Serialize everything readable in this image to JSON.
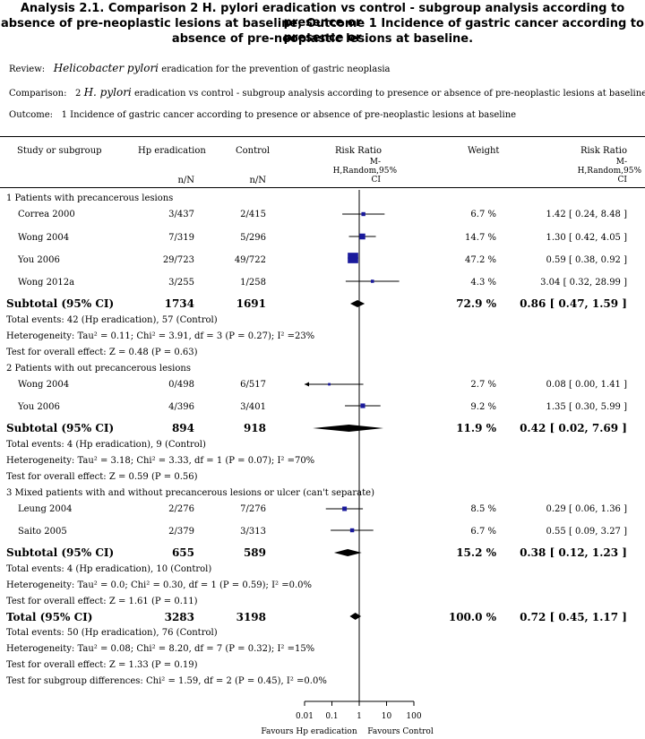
{
  "title": {
    "line1": "Analysis 2.1.   Comparison 2 H. pylori eradication vs control - subgroup analysis according to presence or",
    "line2": "absence of pre-neoplastic lesions at baseline, Outcome 1 Incidence of gastric cancer according to presence or",
    "line3": "absence of pre-neoplastic lesions at baseline."
  },
  "meta": {
    "review_label": "Review:",
    "review_italic": "Helicobacter pylori",
    "review_text": "eradication for the prevention of gastric neoplasia",
    "comparison_label": "Comparison:",
    "comparison_prefix": "2",
    "comparison_italic": "H. pylori",
    "comparison_text": "eradication vs control - subgroup analysis according to presence or absence of pre-neoplastic lesions at baseline",
    "outcome_label": "Outcome:",
    "outcome_text": "1 Incidence of gastric cancer according to presence or absence of pre-neoplastic lesions at baseline"
  },
  "columns": {
    "study": "Study or subgroup",
    "hp": "Hp eradication",
    "control": "Control",
    "rr_plot_1": "Risk Ratio",
    "rr_plot_2": "M-",
    "rr_plot_3": "H,Random,95%",
    "rr_plot_4": "CI",
    "weight": "Weight",
    "rr_1": "Risk Ratio",
    "rr_2": "M-",
    "rr_3": "H,Random,95%",
    "rr_4": "CI",
    "hp_sub": "n/N",
    "control_sub": "n/N"
  },
  "groups": [
    {
      "title": "1 Patients with precancerous lesions",
      "studies": [
        {
          "name": "Correa 2000",
          "hp": "3/437",
          "control": "2/415",
          "weight": "6.7 %",
          "ci_text": "1.42 [ 0.24, 8.48 ]"
        },
        {
          "name": "Wong 2004",
          "hp": "7/319",
          "control": "5/296",
          "weight": "14.7 %",
          "ci_text": "1.30 [ 0.42, 4.05 ]"
        },
        {
          "name": "You 2006",
          "hp": "29/723",
          "control": "49/722",
          "weight": "47.2 %",
          "ci_text": "0.59 [ 0.38, 0.92 ]"
        },
        {
          "name": "Wong 2012a",
          "hp": "3/255",
          "control": "1/258",
          "weight": "4.3 %",
          "ci_text": "3.04 [ 0.32, 28.99 ]"
        }
      ],
      "subtotal": {
        "label": "Subtotal (95% CI)",
        "hp": "1734",
        "control": "1691",
        "weight": "72.9 %",
        "ci_text": "0.86 [ 0.47, 1.59 ]"
      },
      "stats": [
        "Total events: 42 (Hp eradication), 57 (Control)",
        "Heterogeneity: Tau² = 0.11; Chi² = 3.91, df = 3 (P = 0.27); I² =23%",
        "Test for overall effect: Z = 0.48 (P = 0.63)"
      ]
    },
    {
      "title": "2 Patients with out precancerous lesions",
      "studies": [
        {
          "name": "Wong 2004",
          "hp": "0/498",
          "control": "6/517",
          "weight": "2.7 %",
          "ci_text": "0.08 [ 0.00, 1.41 ]"
        },
        {
          "name": "You 2006",
          "hp": "4/396",
          "control": "3/401",
          "weight": "9.2 %",
          "ci_text": "1.35 [ 0.30, 5.99 ]"
        }
      ],
      "subtotal": {
        "label": "Subtotal (95% CI)",
        "hp": "894",
        "control": "918",
        "weight": "11.9 %",
        "ci_text": "0.42 [ 0.02, 7.69 ]"
      },
      "stats": [
        "Total events: 4 (Hp eradication), 9 (Control)",
        "Heterogeneity: Tau² = 3.18; Chi² = 3.33, df = 1 (P = 0.07); I² =70%",
        "Test for overall effect: Z = 0.59 (P = 0.56)"
      ]
    },
    {
      "title": "3 Mixed patients with and without precancerous lesions or ulcer (can't separate)",
      "studies": [
        {
          "name": "Leung 2004",
          "hp": "2/276",
          "control": "7/276",
          "weight": "8.5 %",
          "ci_text": "0.29 [ 0.06, 1.36 ]"
        },
        {
          "name": "Saito 2005",
          "hp": "2/379",
          "control": "3/313",
          "weight": "6.7 %",
          "ci_text": "0.55 [ 0.09, 3.27 ]"
        }
      ],
      "subtotal": {
        "label": "Subtotal (95% CI)",
        "hp": "655",
        "control": "589",
        "weight": "15.2 %",
        "ci_text": "0.38 [ 0.12, 1.23 ]"
      },
      "stats": [
        "Total events: 4 (Hp eradication), 10 (Control)",
        "Heterogeneity: Tau² = 0.0; Chi² = 0.30, df = 1 (P = 0.59); I² =0.0%",
        "Test for overall effect: Z = 1.61 (P = 0.11)"
      ]
    }
  ],
  "total": {
    "label": "Total (95% CI)",
    "hp": "3283",
    "control": "3198",
    "weight": "100.0 %",
    "ci_text": "0.72 [ 0.45, 1.17 ]"
  },
  "total_stats": [
    "Total events: 50 (Hp eradication), 76 (Control)",
    "Heterogeneity: Tau² = 0.08; Chi² = 8.20, df = 7 (P = 0.32); I² =15%",
    "Test for overall effect: Z = 1.33 (P = 0.19)",
    "Test for subgroup differences: Chi² = 1.59, df = 2 (P = 0.45), I² =0.0%"
  ],
  "axis": {
    "ticks": [
      "0.01",
      "0.1",
      "1",
      "10",
      "100"
    ],
    "favours_left": "Favours Hp eradication",
    "favours_right": "Favours Control"
  },
  "chart_data": {
    "type": "forest",
    "scale": "log",
    "xlim": [
      0.01,
      100
    ],
    "tick_values": [
      0.01,
      0.1,
      1,
      10,
      100
    ],
    "null_value": 1,
    "rows": [
      {
        "kind": "study",
        "name": "Correa 2000",
        "rr": 1.42,
        "lo": 0.24,
        "hi": 8.48,
        "weight": 6.7
      },
      {
        "kind": "study",
        "name": "Wong 2004",
        "rr": 1.3,
        "lo": 0.42,
        "hi": 4.05,
        "weight": 14.7
      },
      {
        "kind": "study",
        "name": "You 2006",
        "rr": 0.59,
        "lo": 0.38,
        "hi": 0.92,
        "weight": 47.2
      },
      {
        "kind": "study",
        "name": "Wong 2012a",
        "rr": 3.04,
        "lo": 0.32,
        "hi": 28.99,
        "weight": 4.3
      },
      {
        "kind": "diamond",
        "name": "Subtotal 1",
        "rr": 0.86,
        "lo": 0.47,
        "hi": 1.59
      },
      {
        "kind": "study",
        "name": "Wong 2004",
        "rr": 0.08,
        "lo": 0.0,
        "hi": 1.41,
        "weight": 2.7
      },
      {
        "kind": "study",
        "name": "You 2006",
        "rr": 1.35,
        "lo": 0.3,
        "hi": 5.99,
        "weight": 9.2
      },
      {
        "kind": "diamond",
        "name": "Subtotal 2",
        "rr": 0.42,
        "lo": 0.02,
        "hi": 7.69
      },
      {
        "kind": "study",
        "name": "Leung 2004",
        "rr": 0.29,
        "lo": 0.06,
        "hi": 1.36,
        "weight": 8.5
      },
      {
        "kind": "study",
        "name": "Saito 2005",
        "rr": 0.55,
        "lo": 0.09,
        "hi": 3.27,
        "weight": 6.7
      },
      {
        "kind": "diamond",
        "name": "Subtotal 3",
        "rr": 0.38,
        "lo": 0.12,
        "hi": 1.23
      },
      {
        "kind": "diamond",
        "name": "Total",
        "rr": 0.72,
        "lo": 0.45,
        "hi": 1.17
      }
    ]
  }
}
